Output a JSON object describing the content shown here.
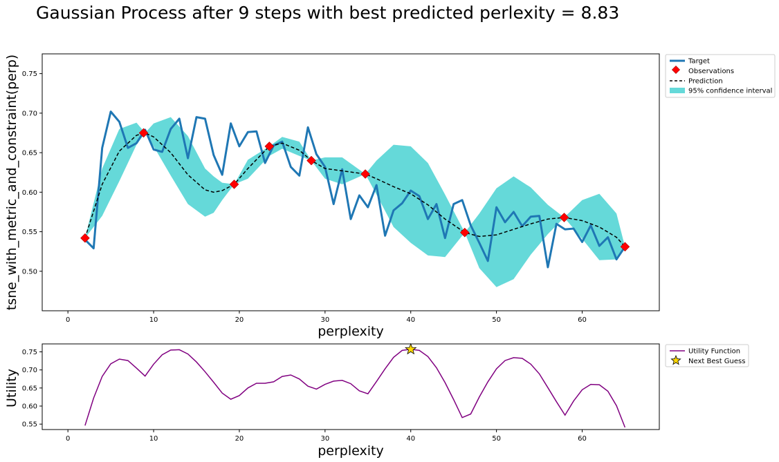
{
  "figure": {
    "title": "Gaussian Process after 9 steps with best predicted perlexity = 8.83"
  },
  "colors": {
    "target": "#1f77b4",
    "observation": "#ff0000",
    "prediction": "#000000",
    "confidence": "#3fcfd0",
    "utility": "#800080",
    "next_guess": "#ffd700"
  },
  "chart_data": [
    {
      "type": "line",
      "xlabel": "perplexity",
      "ylabel": "tsne_with_metric_and_constraint(perp)",
      "xlim": [
        -3,
        69
      ],
      "ylim": [
        0.45,
        0.775
      ],
      "xticks": [
        0,
        10,
        20,
        30,
        40,
        50,
        60
      ],
      "yticks": [
        0.5,
        0.55,
        0.6,
        0.65,
        0.7,
        0.75
      ],
      "legend_position": "outside-right-top",
      "legend": [
        "Target",
        "Observations",
        "Prediction",
        "95% confidence interval"
      ],
      "series": [
        {
          "name": "Target",
          "x": [
            2,
            3,
            4,
            5,
            6,
            7,
            8,
            9,
            10,
            11,
            12,
            13,
            14,
            15,
            16,
            17,
            18,
            19,
            20,
            21,
            22,
            23,
            24,
            25,
            26,
            27,
            28,
            29,
            30,
            31,
            32,
            33,
            34,
            35,
            36,
            37,
            38,
            39,
            40,
            41,
            42,
            43,
            44,
            45,
            46,
            47,
            48,
            49,
            50,
            51,
            52,
            53,
            54,
            55,
            56,
            57,
            58,
            59,
            60,
            61,
            62,
            63,
            64,
            65
          ],
          "y": [
            0.54,
            0.529,
            0.656,
            0.702,
            0.689,
            0.656,
            0.662,
            0.679,
            0.654,
            0.651,
            0.68,
            0.693,
            0.643,
            0.695,
            0.693,
            0.647,
            0.622,
            0.687,
            0.658,
            0.676,
            0.677,
            0.637,
            0.659,
            0.664,
            0.632,
            0.621,
            0.682,
            0.648,
            0.632,
            0.585,
            0.629,
            0.566,
            0.596,
            0.581,
            0.609,
            0.545,
            0.577,
            0.586,
            0.602,
            0.595,
            0.566,
            0.585,
            0.542,
            0.585,
            0.59,
            0.558,
            0.536,
            0.513,
            0.581,
            0.562,
            0.575,
            0.557,
            0.569,
            0.57,
            0.505,
            0.56,
            0.553,
            0.554,
            0.537,
            0.558,
            0.532,
            0.543,
            0.515,
            0.531
          ]
        },
        {
          "name": "Observations",
          "x": [
            2,
            8.83,
            19.4,
            23.5,
            28.4,
            34.7,
            46.3,
            57.9,
            65
          ],
          "y": [
            0.542,
            0.675,
            0.61,
            0.658,
            0.64,
            0.623,
            0.549,
            0.568,
            0.531
          ]
        },
        {
          "name": "Prediction",
          "x": [
            2,
            4,
            6,
            8,
            9,
            10,
            12,
            14,
            16,
            17,
            18,
            19.4,
            21,
            23.5,
            25,
            27,
            28.4,
            30,
            32,
            34.7,
            36,
            38,
            40,
            42,
            44,
            46.3,
            48,
            50,
            52,
            54,
            56,
            57.9,
            60,
            62,
            64,
            65
          ],
          "y": [
            0.542,
            0.61,
            0.652,
            0.672,
            0.675,
            0.67,
            0.65,
            0.622,
            0.603,
            0.6,
            0.602,
            0.61,
            0.63,
            0.658,
            0.662,
            0.653,
            0.64,
            0.63,
            0.627,
            0.623,
            0.617,
            0.607,
            0.598,
            0.584,
            0.566,
            0.549,
            0.544,
            0.546,
            0.553,
            0.56,
            0.566,
            0.568,
            0.564,
            0.556,
            0.543,
            0.531
          ]
        },
        {
          "name": "95% confidence interval",
          "x": [
            2,
            4,
            6,
            8,
            9,
            10,
            12,
            14,
            16,
            17,
            18,
            19.4,
            21,
            23.5,
            25,
            27,
            28.4,
            30,
            32,
            34.7,
            36,
            38,
            40,
            42,
            44,
            46.3,
            48,
            50,
            52,
            54,
            56,
            57.9,
            60,
            62,
            64,
            65
          ],
          "lower": [
            0.542,
            0.57,
            0.614,
            0.66,
            0.675,
            0.658,
            0.621,
            0.585,
            0.569,
            0.574,
            0.59,
            0.61,
            0.617,
            0.646,
            0.655,
            0.646,
            0.64,
            0.617,
            0.61,
            0.623,
            0.597,
            0.556,
            0.536,
            0.52,
            0.518,
            0.549,
            0.504,
            0.48,
            0.49,
            0.521,
            0.547,
            0.568,
            0.541,
            0.514,
            0.515,
            0.531
          ],
          "upper": [
            0.542,
            0.63,
            0.68,
            0.688,
            0.675,
            0.687,
            0.695,
            0.671,
            0.63,
            0.62,
            0.612,
            0.61,
            0.641,
            0.658,
            0.67,
            0.664,
            0.64,
            0.644,
            0.644,
            0.623,
            0.64,
            0.66,
            0.658,
            0.637,
            0.597,
            0.549,
            0.573,
            0.605,
            0.62,
            0.606,
            0.584,
            0.568,
            0.59,
            0.598,
            0.573,
            0.531
          ]
        }
      ]
    },
    {
      "type": "line",
      "xlabel": "perplexity",
      "ylabel": "Utility",
      "xlim": [
        -3,
        69
      ],
      "ylim": [
        0.535,
        0.772
      ],
      "xticks": [
        0,
        10,
        20,
        30,
        40,
        50,
        60
      ],
      "yticks": [
        0.55,
        0.6,
        0.65,
        0.7,
        0.75
      ],
      "legend_position": "outside-right-top",
      "legend": [
        "Utility Function",
        "Next Best Guess"
      ],
      "series": [
        {
          "name": "Utility Function",
          "x": [
            2,
            3,
            4,
            5,
            6,
            7,
            8,
            9,
            10,
            11,
            12,
            13,
            14,
            15,
            16,
            17,
            18,
            19,
            20,
            21,
            22,
            23,
            24,
            25,
            26,
            27,
            28,
            29,
            30,
            31,
            32,
            33,
            34,
            35,
            36,
            37,
            38,
            39,
            40,
            41,
            42,
            43,
            44,
            45,
            46,
            47,
            48,
            49,
            50,
            51,
            52,
            53,
            54,
            55,
            56,
            57,
            58,
            59,
            60,
            61,
            62,
            63,
            64,
            65
          ],
          "y": [
            0.546,
            0.622,
            0.682,
            0.717,
            0.73,
            0.726,
            0.705,
            0.683,
            0.716,
            0.742,
            0.755,
            0.756,
            0.744,
            0.722,
            0.695,
            0.666,
            0.636,
            0.619,
            0.629,
            0.65,
            0.663,
            0.663,
            0.667,
            0.682,
            0.686,
            0.675,
            0.655,
            0.647,
            0.66,
            0.669,
            0.671,
            0.662,
            0.642,
            0.634,
            0.668,
            0.703,
            0.735,
            0.754,
            0.757,
            0.754,
            0.737,
            0.706,
            0.665,
            0.618,
            0.568,
            0.578,
            0.625,
            0.667,
            0.703,
            0.726,
            0.734,
            0.732,
            0.716,
            0.689,
            0.651,
            0.612,
            0.575,
            0.614,
            0.645,
            0.66,
            0.659,
            0.641,
            0.601,
            0.541
          ]
        },
        {
          "name": "Next Best Guess",
          "x": [
            40
          ],
          "y": [
            0.757
          ]
        }
      ]
    }
  ]
}
